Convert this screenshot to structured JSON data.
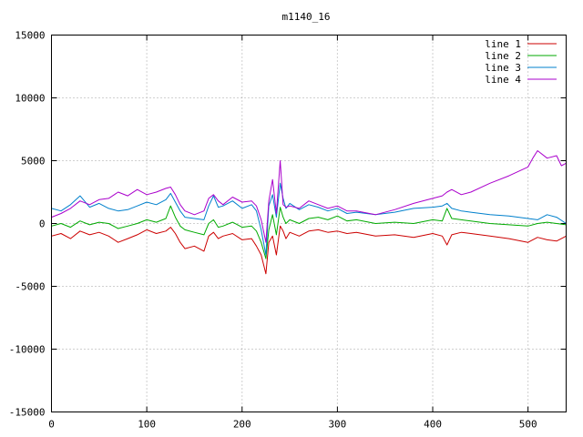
{
  "chart_data": {
    "type": "line",
    "title": "m1140_16",
    "xlabel": "",
    "ylabel": "",
    "xlim": [
      0,
      540
    ],
    "ylim": [
      -15000,
      15000
    ],
    "xticks": [
      0,
      100,
      200,
      300,
      400,
      500
    ],
    "yticks": [
      -15000,
      -10000,
      -5000,
      0,
      5000,
      10000,
      15000
    ],
    "xtick_labels": [
      "0",
      "100",
      "200",
      "300",
      "400",
      "500"
    ],
    "ytick_labels": [
      "-15000",
      "-10000",
      "-5000",
      "0",
      "5000",
      "10000",
      "15000"
    ],
    "grid": true,
    "legend_position": "top-right",
    "series": [
      {
        "name": "line 1",
        "color": "#cc0000",
        "x": [
          0,
          10,
          20,
          30,
          40,
          50,
          60,
          70,
          80,
          90,
          100,
          110,
          120,
          125,
          130,
          135,
          140,
          150,
          160,
          165,
          170,
          175,
          180,
          190,
          200,
          210,
          215,
          220,
          225,
          228,
          232,
          236,
          240,
          243,
          246,
          250,
          260,
          270,
          280,
          290,
          300,
          310,
          320,
          340,
          360,
          380,
          400,
          410,
          415,
          420,
          430,
          440,
          460,
          480,
          500,
          510,
          520,
          530,
          540
        ],
        "y": [
          -1000,
          -800,
          -1200,
          -600,
          -900,
          -700,
          -1000,
          -1500,
          -1200,
          -900,
          -500,
          -800,
          -600,
          -300,
          -800,
          -1500,
          -2000,
          -1800,
          -2200,
          -1000,
          -700,
          -1200,
          -1000,
          -800,
          -1300,
          -1200,
          -1800,
          -2500,
          -4000,
          -1500,
          -1000,
          -2500,
          -200,
          -600,
          -1200,
          -700,
          -1000,
          -600,
          -500,
          -700,
          -600,
          -800,
          -700,
          -1000,
          -900,
          -1100,
          -800,
          -1000,
          -1700,
          -900,
          -700,
          -800,
          -1000,
          -1200,
          -1500,
          -1100,
          -1300,
          -1400,
          -1000
        ]
      },
      {
        "name": "line 2",
        "color": "#00aa00",
        "x": [
          0,
          10,
          20,
          30,
          40,
          50,
          60,
          70,
          80,
          90,
          100,
          110,
          120,
          125,
          130,
          135,
          140,
          150,
          160,
          165,
          170,
          175,
          180,
          190,
          200,
          210,
          215,
          220,
          225,
          228,
          232,
          236,
          240,
          243,
          246,
          250,
          260,
          270,
          280,
          290,
          300,
          310,
          320,
          340,
          360,
          380,
          400,
          410,
          415,
          420,
          430,
          440,
          460,
          480,
          500,
          510,
          520,
          530,
          540
        ],
        "y": [
          -200,
          0,
          -300,
          200,
          -100,
          100,
          0,
          -400,
          -200,
          0,
          300,
          100,
          400,
          1400,
          500,
          -200,
          -500,
          -700,
          -900,
          0,
          300,
          -300,
          -200,
          100,
          -300,
          -200,
          -600,
          -1500,
          -2800,
          -500,
          700,
          -900,
          1300,
          500,
          0,
          300,
          0,
          400,
          500,
          300,
          600,
          200,
          300,
          0,
          100,
          0,
          300,
          200,
          1200,
          400,
          300,
          200,
          0,
          -100,
          -200,
          0,
          100,
          0,
          -100
        ]
      },
      {
        "name": "line 3",
        "color": "#0080cc",
        "x": [
          0,
          10,
          20,
          30,
          40,
          50,
          60,
          70,
          80,
          90,
          100,
          110,
          120,
          125,
          130,
          135,
          140,
          150,
          160,
          165,
          170,
          175,
          180,
          190,
          200,
          210,
          215,
          220,
          225,
          228,
          232,
          236,
          240,
          243,
          246,
          250,
          260,
          270,
          280,
          290,
          300,
          310,
          320,
          340,
          360,
          380,
          400,
          410,
          415,
          420,
          430,
          440,
          460,
          480,
          500,
          510,
          520,
          530,
          540
        ],
        "y": [
          1200,
          1000,
          1500,
          2200,
          1300,
          1600,
          1200,
          1000,
          1100,
          1400,
          1700,
          1500,
          1900,
          2400,
          1700,
          1000,
          500,
          400,
          300,
          1400,
          2200,
          1300,
          1400,
          1800,
          1200,
          1500,
          1000,
          -500,
          -2500,
          1400,
          2300,
          500,
          3200,
          2000,
          1200,
          1600,
          1100,
          1500,
          1300,
          1000,
          1200,
          800,
          900,
          700,
          900,
          1200,
          1300,
          1400,
          1600,
          1200,
          1000,
          900,
          700,
          600,
          400,
          300,
          700,
          500,
          0
        ]
      },
      {
        "name": "line 4",
        "color": "#aa00cc",
        "x": [
          0,
          10,
          20,
          30,
          40,
          50,
          60,
          70,
          80,
          90,
          100,
          110,
          120,
          125,
          130,
          135,
          140,
          150,
          160,
          165,
          170,
          175,
          180,
          190,
          200,
          210,
          215,
          220,
          225,
          228,
          232,
          236,
          240,
          243,
          246,
          250,
          260,
          270,
          280,
          290,
          300,
          310,
          320,
          340,
          360,
          380,
          400,
          410,
          415,
          420,
          430,
          440,
          460,
          480,
          500,
          505,
          510,
          520,
          530,
          535,
          540
        ],
        "y": [
          500,
          800,
          1200,
          1800,
          1500,
          1900,
          2000,
          2500,
          2200,
          2700,
          2300,
          2500,
          2800,
          2900,
          2300,
          1500,
          1000,
          700,
          1000,
          2000,
          2300,
          1800,
          1500,
          2100,
          1700,
          1800,
          1400,
          300,
          -1500,
          1800,
          3500,
          800,
          5000,
          1500,
          1300,
          1400,
          1200,
          1800,
          1500,
          1200,
          1400,
          1000,
          1000,
          700,
          1100,
          1600,
          2000,
          2200,
          2500,
          2700,
          2300,
          2500,
          3200,
          3800,
          4500,
          5200,
          5800,
          5200,
          5400,
          4600,
          4800
        ]
      }
    ]
  }
}
